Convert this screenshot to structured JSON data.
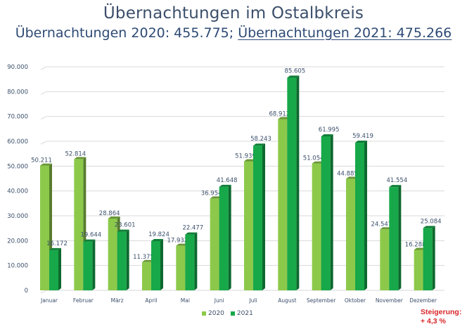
{
  "header": {
    "title": "Übernachtungen im Ostalbkreis",
    "subtitle_part1": "Übernachtungen 2020: 455.775;",
    "subtitle_part2": "Übernachtungen 2021: 475.266"
  },
  "note": {
    "line1": "Steigerung:",
    "line2": "+ 4,3 %"
  },
  "chart_data": {
    "type": "bar",
    "title": "Übernachtungen im Ostalbkreis",
    "xlabel": "",
    "ylabel": "",
    "categories": [
      "Januar",
      "Februar",
      "März",
      "April",
      "Mai",
      "Juni",
      "Juli",
      "August",
      "September",
      "Oktober",
      "November",
      "Dezember"
    ],
    "series": [
      {
        "name": "2020",
        "color": "#8cc94a",
        "values": [
          50211,
          52814,
          28864,
          11375,
          17932,
          36954,
          51939,
          68912,
          51054,
          44885,
          24547,
          16288
        ],
        "labels": [
          "50.211",
          "52.814",
          "28.864",
          "11.375",
          "17.932",
          "36.954",
          "51.939",
          "68.912",
          "51.054",
          "44.885",
          "24.547",
          "16.288"
        ]
      },
      {
        "name": "2021",
        "color": "#17a84a",
        "values": [
          16172,
          19644,
          23601,
          19824,
          22477,
          41648,
          58243,
          85605,
          61995,
          59419,
          41554,
          25084
        ],
        "labels": [
          "16.172",
          "19.644",
          "23.601",
          "19.824",
          "22.477",
          "41.648",
          "58.243",
          "85.605",
          "61.995",
          "59.419",
          "41.554",
          "25.084"
        ]
      }
    ],
    "ylim": [
      0,
      90000
    ],
    "yticks": [
      0,
      10000,
      20000,
      30000,
      40000,
      50000,
      60000,
      70000,
      80000,
      90000
    ],
    "ytick_labels": [
      "0",
      "10.000",
      "20.000",
      "30.000",
      "40.000",
      "50.000",
      "60.000",
      "70.000",
      "80.000",
      "90.000"
    ],
    "grid": true,
    "legend_position": "bottom"
  }
}
